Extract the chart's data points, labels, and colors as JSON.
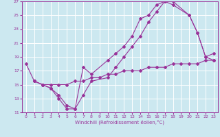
{
  "xlabel": "Windchill (Refroidissement éolien,°C)",
  "xlim": [
    -0.5,
    23.5
  ],
  "ylim": [
    11,
    27
  ],
  "xticks": [
    0,
    1,
    2,
    3,
    4,
    5,
    6,
    7,
    8,
    9,
    10,
    11,
    12,
    13,
    14,
    15,
    16,
    17,
    18,
    19,
    20,
    21,
    22,
    23
  ],
  "yticks": [
    11,
    13,
    15,
    17,
    19,
    21,
    23,
    25,
    27
  ],
  "line_color": "#993399",
  "bg_color": "#cce8f0",
  "grid_color": "#ffffff",
  "line1_x": [
    0,
    1,
    2,
    3,
    4,
    5,
    6,
    7,
    8,
    10,
    11,
    12,
    13,
    14,
    15,
    16,
    17,
    18,
    20,
    21,
    22,
    23
  ],
  "line1_y": [
    18.0,
    15.5,
    15.0,
    14.5,
    13.0,
    11.5,
    11.5,
    17.5,
    16.5,
    18.5,
    19.5,
    20.5,
    22.0,
    24.5,
    25.0,
    26.5,
    27.0,
    27.0,
    25.0,
    22.5,
    19.0,
    19.5
  ],
  "line2_x": [
    1,
    2,
    3,
    4,
    5,
    6,
    7,
    8,
    10,
    11,
    12,
    13,
    14,
    15,
    16,
    17,
    18,
    20,
    21,
    22,
    23
  ],
  "line2_y": [
    15.5,
    15.0,
    14.5,
    13.5,
    12.0,
    11.5,
    13.5,
    15.5,
    16.0,
    17.5,
    19.0,
    20.5,
    22.0,
    24.0,
    25.5,
    27.0,
    26.5,
    25.0,
    22.5,
    19.0,
    18.5
  ],
  "line3_x": [
    1,
    2,
    3,
    4,
    5,
    6,
    7,
    8,
    9,
    10,
    11,
    12,
    13,
    14,
    15,
    16,
    17,
    18,
    19,
    20,
    21,
    22,
    23
  ],
  "line3_y": [
    15.5,
    15.0,
    15.0,
    15.0,
    15.0,
    15.5,
    15.5,
    16.0,
    16.0,
    16.5,
    16.5,
    17.0,
    17.0,
    17.0,
    17.5,
    17.5,
    17.5,
    18.0,
    18.0,
    18.0,
    18.0,
    18.5,
    18.5
  ]
}
